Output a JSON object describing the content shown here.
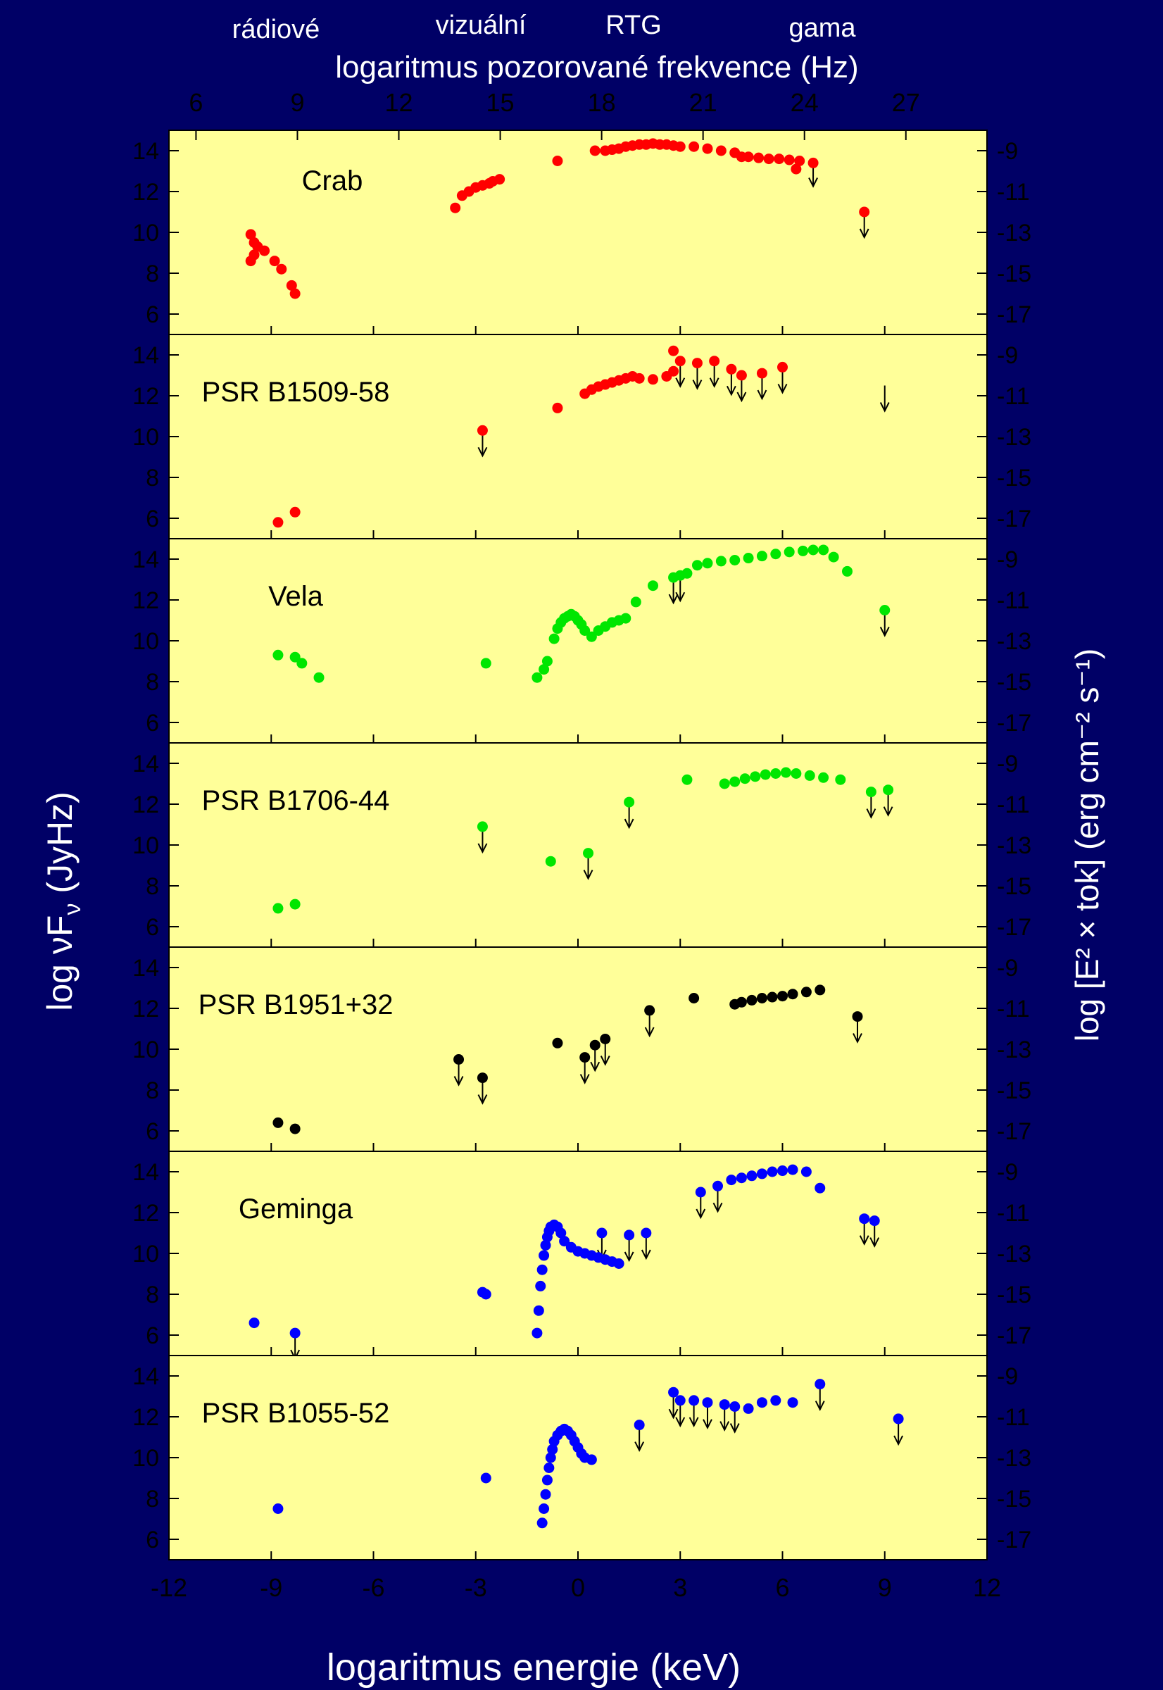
{
  "top": {
    "bands": [
      "rádiové",
      "vizuální",
      "RTG",
      "gama"
    ],
    "axis_title": "logaritmus pozorované frekvence (Hz)",
    "ticks": [
      "6",
      "9",
      "12",
      "15",
      "18",
      "21",
      "24",
      "27"
    ]
  },
  "left_axis_title": "log νF",
  "left_axis_sub": "ν",
  "left_axis_unit": " (JyHz)",
  "right_axis_title": "log [E² × tok] (erg cm⁻² s⁻¹)",
  "bottom_axis_title": "logaritmus energie (keV)",
  "colors": {
    "background": "#000066",
    "panel": "#ffff99",
    "red": "#ff0000",
    "green": "#00e600",
    "black": "#000000",
    "blue": "#0000ff"
  },
  "chart_data": {
    "type": "scatter",
    "x_axis": {
      "label": "logaritmus energie (keV)",
      "range": [
        -12,
        12
      ],
      "ticks": [
        -12,
        -9,
        -6,
        -3,
        0,
        3,
        6,
        9,
        12
      ]
    },
    "top_axis": {
      "label": "logaritmus pozorované frekvence (Hz)",
      "range": [
        5.2,
        29.4
      ],
      "ticks": [
        6,
        9,
        12,
        15,
        18,
        21,
        24,
        27
      ]
    },
    "y_axis_left": {
      "label": "log νFν (JyHz)",
      "range": [
        5,
        15
      ],
      "ticks": [
        6,
        8,
        10,
        12,
        14
      ]
    },
    "y_axis_right": {
      "label": "log [E² × tok] (erg cm⁻² s⁻¹)",
      "ticks": [
        -9,
        -11,
        -13,
        -15,
        -17
      ]
    },
    "panels": [
      {
        "name": "Crab",
        "color": "red",
        "points": [
          [
            -9.6,
            9.9
          ],
          [
            -9.5,
            9.5
          ],
          [
            -9.4,
            9.3
          ],
          [
            -9.6,
            8.6
          ],
          [
            -9.5,
            8.9
          ],
          [
            -9.2,
            9.1
          ],
          [
            -8.9,
            8.6
          ],
          [
            -8.7,
            8.2
          ],
          [
            -8.4,
            7.4
          ],
          [
            -8.3,
            7.0
          ],
          [
            -3.6,
            11.2
          ],
          [
            -3.4,
            11.8
          ],
          [
            -3.2,
            12.0
          ],
          [
            -3.0,
            12.2
          ],
          [
            -2.8,
            12.3
          ],
          [
            -2.6,
            12.4
          ],
          [
            -2.5,
            12.5
          ],
          [
            -2.3,
            12.6
          ],
          [
            -0.6,
            13.5
          ],
          [
            0.5,
            14.0
          ],
          [
            0.8,
            14.0
          ],
          [
            1.0,
            14.05
          ],
          [
            1.2,
            14.1
          ],
          [
            1.4,
            14.2
          ],
          [
            1.6,
            14.25
          ],
          [
            1.8,
            14.3
          ],
          [
            2.0,
            14.3
          ],
          [
            2.2,
            14.35
          ],
          [
            2.4,
            14.3
          ],
          [
            2.6,
            14.3
          ],
          [
            2.8,
            14.25
          ],
          [
            3.0,
            14.2
          ],
          [
            3.4,
            14.2
          ],
          [
            3.8,
            14.1
          ],
          [
            4.2,
            14.0
          ],
          [
            4.6,
            13.9
          ],
          [
            4.8,
            13.7
          ],
          [
            5.0,
            13.7
          ],
          [
            5.3,
            13.65
          ],
          [
            5.6,
            13.6
          ],
          [
            5.9,
            13.6
          ],
          [
            6.2,
            13.55
          ],
          [
            6.5,
            13.5
          ],
          [
            6.9,
            13.4
          ],
          [
            6.4,
            13.1
          ],
          [
            8.4,
            11.0
          ]
        ],
        "upper_limits": [
          [
            6.9,
            13.5
          ],
          [
            8.4,
            11.0
          ]
        ]
      },
      {
        "name": "PSR B1509-58",
        "color": "red",
        "points": [
          [
            -8.8,
            5.8
          ],
          [
            -8.3,
            6.3
          ],
          [
            -2.8,
            10.3
          ],
          [
            -0.6,
            11.4
          ],
          [
            0.2,
            12.1
          ],
          [
            0.4,
            12.3
          ],
          [
            0.6,
            12.45
          ],
          [
            0.8,
            12.55
          ],
          [
            1.0,
            12.65
          ],
          [
            1.2,
            12.75
          ],
          [
            1.4,
            12.85
          ],
          [
            1.6,
            12.95
          ],
          [
            1.8,
            12.85
          ],
          [
            2.2,
            12.8
          ],
          [
            2.6,
            12.95
          ],
          [
            2.8,
            14.2
          ],
          [
            2.8,
            13.2
          ],
          [
            3.0,
            13.7
          ],
          [
            3.5,
            13.6
          ],
          [
            4.0,
            13.7
          ],
          [
            4.5,
            13.3
          ],
          [
            4.8,
            13.0
          ],
          [
            5.4,
            13.1
          ],
          [
            6.0,
            13.4
          ]
        ],
        "upper_limits": [
          [
            -2.8,
            10.3
          ],
          [
            3.0,
            13.7
          ],
          [
            3.5,
            13.6
          ],
          [
            4.0,
            13.7
          ],
          [
            4.5,
            13.3
          ],
          [
            4.8,
            13.0
          ],
          [
            5.4,
            13.1
          ],
          [
            6.0,
            13.4
          ],
          [
            9.0,
            12.5
          ]
        ]
      },
      {
        "name": "Vela",
        "color": "green",
        "points": [
          [
            -8.8,
            9.3
          ],
          [
            -8.3,
            9.2
          ],
          [
            -8.1,
            8.9
          ],
          [
            -7.6,
            8.2
          ],
          [
            -2.7,
            8.9
          ],
          [
            -1.2,
            8.2
          ],
          [
            -1.0,
            8.6
          ],
          [
            -0.9,
            9.0
          ],
          [
            -0.7,
            10.1
          ],
          [
            -0.6,
            10.6
          ],
          [
            -0.5,
            10.9
          ],
          [
            -0.4,
            11.1
          ],
          [
            -0.3,
            11.2
          ],
          [
            -0.2,
            11.3
          ],
          [
            -0.1,
            11.2
          ],
          [
            0.0,
            11.0
          ],
          [
            0.1,
            10.8
          ],
          [
            0.2,
            10.5
          ],
          [
            0.4,
            10.2
          ],
          [
            0.6,
            10.5
          ],
          [
            0.8,
            10.7
          ],
          [
            1.0,
            10.9
          ],
          [
            1.2,
            11.0
          ],
          [
            1.4,
            11.1
          ],
          [
            1.7,
            11.9
          ],
          [
            2.2,
            12.7
          ],
          [
            2.8,
            13.1
          ],
          [
            3.0,
            13.2
          ],
          [
            3.2,
            13.3
          ],
          [
            3.5,
            13.7
          ],
          [
            3.8,
            13.8
          ],
          [
            4.2,
            13.9
          ],
          [
            4.6,
            13.95
          ],
          [
            5.0,
            14.05
          ],
          [
            5.4,
            14.15
          ],
          [
            5.8,
            14.25
          ],
          [
            6.2,
            14.35
          ],
          [
            6.6,
            14.4
          ],
          [
            6.9,
            14.45
          ],
          [
            7.2,
            14.45
          ],
          [
            7.5,
            14.1
          ],
          [
            7.9,
            13.4
          ],
          [
            9.0,
            11.5
          ]
        ],
        "upper_limits": [
          [
            2.8,
            13.1
          ],
          [
            3.0,
            13.2
          ],
          [
            9.0,
            11.5
          ]
        ]
      },
      {
        "name": "PSR B1706-44",
        "color": "green",
        "points": [
          [
            -8.8,
            6.9
          ],
          [
            -8.3,
            7.1
          ],
          [
            -2.8,
            10.9
          ],
          [
            -0.8,
            9.2
          ],
          [
            0.3,
            9.6
          ],
          [
            1.5,
            12.1
          ],
          [
            3.2,
            13.2
          ],
          [
            4.3,
            13.0
          ],
          [
            4.6,
            13.1
          ],
          [
            4.9,
            13.25
          ],
          [
            5.2,
            13.35
          ],
          [
            5.5,
            13.45
          ],
          [
            5.8,
            13.5
          ],
          [
            6.1,
            13.55
          ],
          [
            6.4,
            13.5
          ],
          [
            6.8,
            13.4
          ],
          [
            7.2,
            13.3
          ],
          [
            7.7,
            13.2
          ],
          [
            8.6,
            12.6
          ],
          [
            9.1,
            12.7
          ]
        ],
        "upper_limits": [
          [
            -2.8,
            10.9
          ],
          [
            0.3,
            9.6
          ],
          [
            1.5,
            12.1
          ],
          [
            8.6,
            12.6
          ],
          [
            9.1,
            12.7
          ]
        ]
      },
      {
        "name": "PSR B1951+32",
        "color": "black",
        "points": [
          [
            -8.8,
            6.4
          ],
          [
            -8.3,
            6.1
          ],
          [
            -3.5,
            9.5
          ],
          [
            -2.8,
            8.6
          ],
          [
            -0.6,
            10.3
          ],
          [
            0.2,
            9.6
          ],
          [
            0.5,
            10.2
          ],
          [
            0.8,
            10.5
          ],
          [
            2.1,
            11.9
          ],
          [
            3.4,
            12.5
          ],
          [
            4.6,
            12.2
          ],
          [
            4.8,
            12.3
          ],
          [
            5.1,
            12.4
          ],
          [
            5.4,
            12.5
          ],
          [
            5.7,
            12.55
          ],
          [
            6.0,
            12.6
          ],
          [
            6.3,
            12.7
          ],
          [
            6.7,
            12.8
          ],
          [
            7.1,
            12.9
          ],
          [
            8.2,
            11.6
          ]
        ],
        "upper_limits": [
          [
            -3.5,
            9.5
          ],
          [
            -2.8,
            8.6
          ],
          [
            0.2,
            9.6
          ],
          [
            0.5,
            10.2
          ],
          [
            0.8,
            10.5
          ],
          [
            2.1,
            11.9
          ],
          [
            8.2,
            11.6
          ]
        ]
      },
      {
        "name": "Geminga",
        "color": "blue",
        "points": [
          [
            -9.5,
            6.6
          ],
          [
            -8.3,
            6.1
          ],
          [
            -2.8,
            8.1
          ],
          [
            -2.7,
            8.0
          ],
          [
            -1.2,
            6.1
          ],
          [
            -1.15,
            7.2
          ],
          [
            -1.1,
            8.4
          ],
          [
            -1.05,
            9.2
          ],
          [
            -1.0,
            9.9
          ],
          [
            -0.95,
            10.4
          ],
          [
            -0.9,
            10.8
          ],
          [
            -0.85,
            11.1
          ],
          [
            -0.8,
            11.3
          ],
          [
            -0.7,
            11.4
          ],
          [
            -0.6,
            11.3
          ],
          [
            -0.5,
            11.0
          ],
          [
            -0.4,
            10.6
          ],
          [
            -0.2,
            10.3
          ],
          [
            0.0,
            10.1
          ],
          [
            0.2,
            10.0
          ],
          [
            0.4,
            9.9
          ],
          [
            0.6,
            9.8
          ],
          [
            0.8,
            9.7
          ],
          [
            1.0,
            9.6
          ],
          [
            1.2,
            9.5
          ],
          [
            0.7,
            11.0
          ],
          [
            1.5,
            10.9
          ],
          [
            2.0,
            11.0
          ],
          [
            3.6,
            13.0
          ],
          [
            4.1,
            13.3
          ],
          [
            4.5,
            13.6
          ],
          [
            4.8,
            13.7
          ],
          [
            5.1,
            13.8
          ],
          [
            5.4,
            13.9
          ],
          [
            5.7,
            14.0
          ],
          [
            6.0,
            14.05
          ],
          [
            6.3,
            14.1
          ],
          [
            6.7,
            14.0
          ],
          [
            7.1,
            13.2
          ],
          [
            8.4,
            11.7
          ],
          [
            8.7,
            11.6
          ]
        ],
        "upper_limits": [
          [
            -8.3,
            6.1
          ],
          [
            0.7,
            11.0
          ],
          [
            1.5,
            10.9
          ],
          [
            2.0,
            11.0
          ],
          [
            3.6,
            13.0
          ],
          [
            4.1,
            13.3
          ],
          [
            8.4,
            11.7
          ],
          [
            8.7,
            11.6
          ]
        ]
      },
      {
        "name": "PSR B1055-52",
        "color": "blue",
        "points": [
          [
            -8.8,
            7.5
          ],
          [
            -2.7,
            9.0
          ],
          [
            -1.05,
            6.8
          ],
          [
            -1.0,
            7.5
          ],
          [
            -0.95,
            8.2
          ],
          [
            -0.9,
            8.9
          ],
          [
            -0.85,
            9.5
          ],
          [
            -0.8,
            10.0
          ],
          [
            -0.75,
            10.4
          ],
          [
            -0.7,
            10.8
          ],
          [
            -0.6,
            11.1
          ],
          [
            -0.5,
            11.3
          ],
          [
            -0.4,
            11.4
          ],
          [
            -0.3,
            11.3
          ],
          [
            -0.2,
            11.1
          ],
          [
            -0.1,
            10.8
          ],
          [
            0.0,
            10.5
          ],
          [
            0.1,
            10.2
          ],
          [
            0.2,
            10.0
          ],
          [
            0.4,
            9.9
          ],
          [
            1.8,
            11.6
          ],
          [
            2.8,
            13.2
          ],
          [
            3.0,
            12.8
          ],
          [
            3.4,
            12.8
          ],
          [
            3.8,
            12.7
          ],
          [
            4.3,
            12.6
          ],
          [
            4.6,
            12.5
          ],
          [
            5.0,
            12.4
          ],
          [
            5.4,
            12.7
          ],
          [
            5.8,
            12.8
          ],
          [
            6.3,
            12.7
          ],
          [
            7.1,
            13.6
          ],
          [
            9.4,
            11.9
          ]
        ],
        "upper_limits": [
          [
            1.8,
            11.6
          ],
          [
            2.8,
            13.2
          ],
          [
            3.0,
            12.8
          ],
          [
            3.4,
            12.8
          ],
          [
            3.8,
            12.7
          ],
          [
            4.3,
            12.6
          ],
          [
            4.6,
            12.5
          ],
          [
            7.1,
            13.6
          ],
          [
            9.4,
            11.9
          ]
        ]
      }
    ]
  }
}
